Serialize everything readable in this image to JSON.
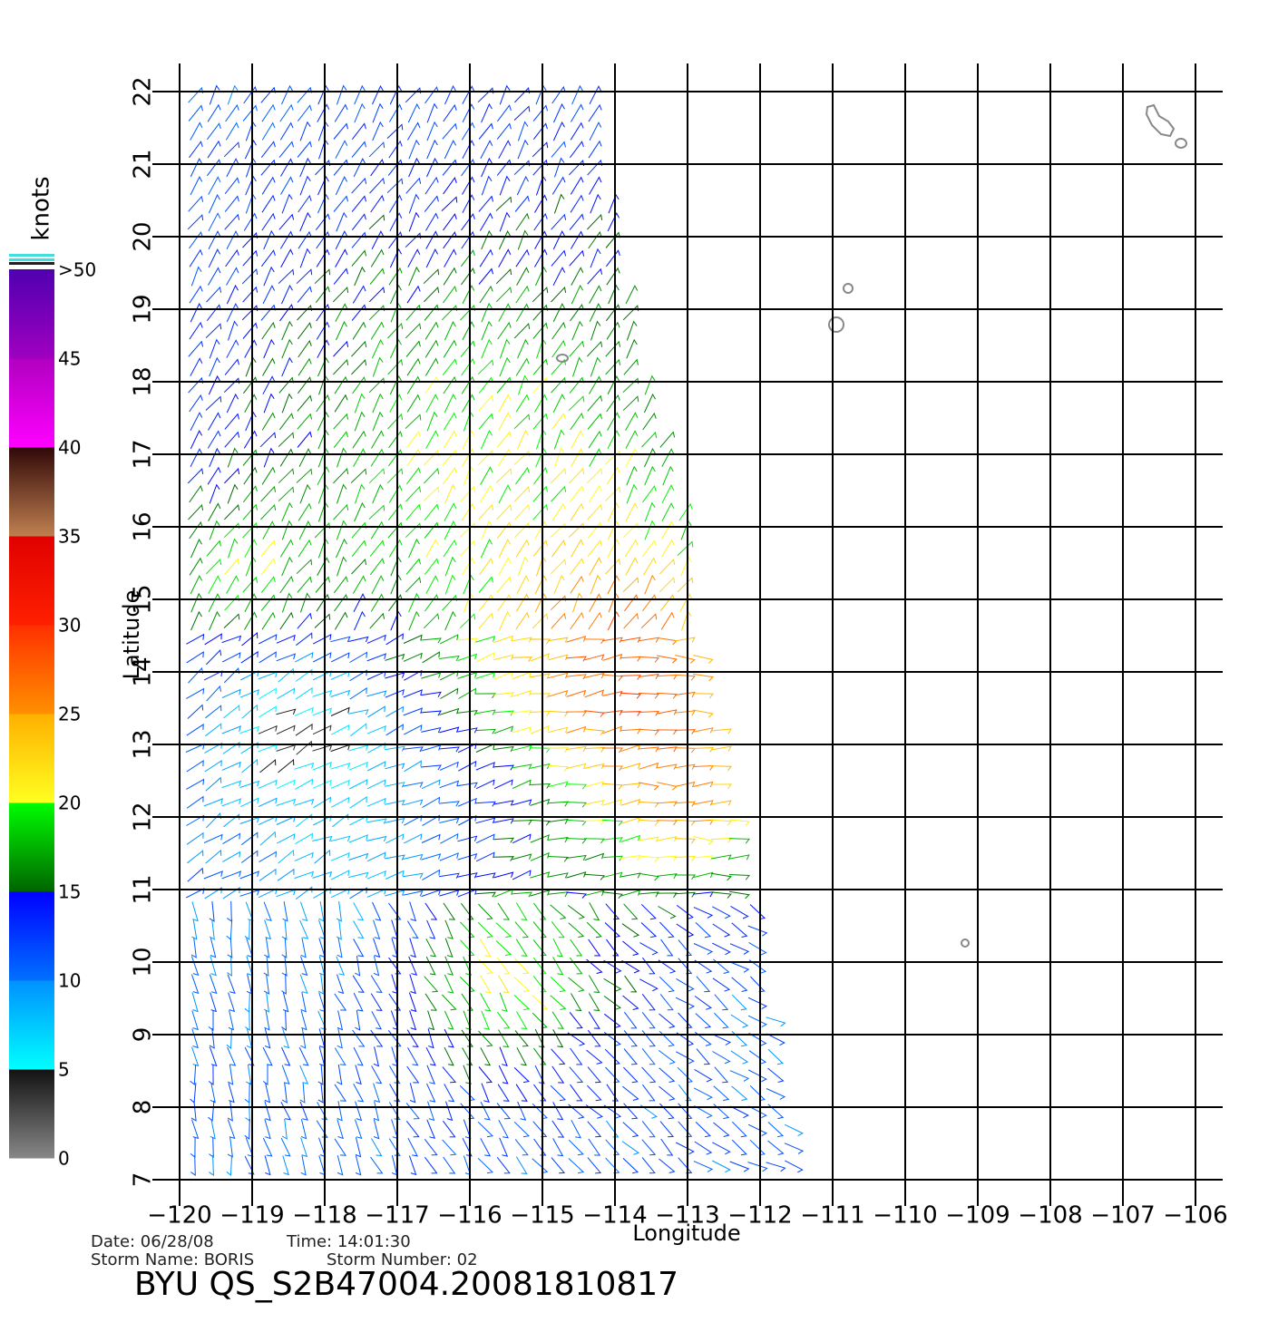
{
  "map": {
    "title": "BYU QS_S2B47004.20081810817",
    "date": "Date: 06/28/08",
    "time": "Time: 14:01:30",
    "storm_name": "Storm Name: BORIS",
    "storm_number": "Storm Number: 02",
    "xlabel": "Longitude",
    "ylabel": "Latitude",
    "xlim": [
      -120,
      -106
    ],
    "ylim": [
      7,
      22
    ],
    "xticks": [
      {
        "value": -120,
        "label": "−120"
      },
      {
        "value": -119,
        "label": "−119"
      },
      {
        "value": -118,
        "label": "−118"
      },
      {
        "value": -117,
        "label": "−117"
      },
      {
        "value": -116,
        "label": "−116"
      },
      {
        "value": -115,
        "label": "−115"
      },
      {
        "value": -114,
        "label": "−114"
      },
      {
        "value": -113,
        "label": "−113"
      },
      {
        "value": -112,
        "label": "−112"
      },
      {
        "value": -111,
        "label": "−111"
      },
      {
        "value": -110,
        "label": "−110"
      },
      {
        "value": -109,
        "label": "−109"
      },
      {
        "value": -108,
        "label": "−108"
      },
      {
        "value": -107,
        "label": "−107"
      },
      {
        "value": -106,
        "label": "−106"
      }
    ],
    "yticks": [
      7,
      8,
      9,
      10,
      11,
      12,
      13,
      14,
      15,
      16,
      17,
      18,
      19,
      20,
      21,
      22
    ],
    "colorbar": {
      "title": "knots",
      "ylim": [
        0,
        50
      ],
      "ticks": [
        0,
        5,
        10,
        15,
        20,
        25,
        30,
        35,
        40,
        45,
        {
          "value": 50,
          "label": ">50"
        }
      ],
      "colors": [
        [
          "#888888",
          "#111111"
        ],
        [
          "#00ffff",
          "#0090ff"
        ],
        [
          "#0070ff",
          "#0000ff"
        ],
        [
          "#006400",
          "#00ff00"
        ],
        [
          "#ffff20",
          "#ffb000"
        ],
        [
          "#ff9000",
          "#ff3000"
        ],
        [
          "#ff2000",
          "#e00000"
        ],
        [
          "#c08050",
          "#300808"
        ],
        [
          "#ff00ff",
          "#b000c0"
        ],
        [
          "#a000c0",
          "#5000b0"
        ]
      ]
    }
  }
}
